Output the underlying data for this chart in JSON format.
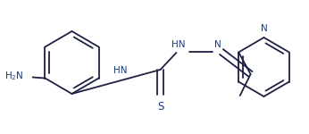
{
  "bg_color": "#ffffff",
  "bond_color": "#1e2044",
  "text_color": "#1a3a7e",
  "lw": 1.3,
  "figsize": [
    3.46,
    1.5
  ],
  "dpi": 100,
  "xlim": [
    0.0,
    3.46
  ],
  "ylim": [
    0.0,
    1.5
  ]
}
